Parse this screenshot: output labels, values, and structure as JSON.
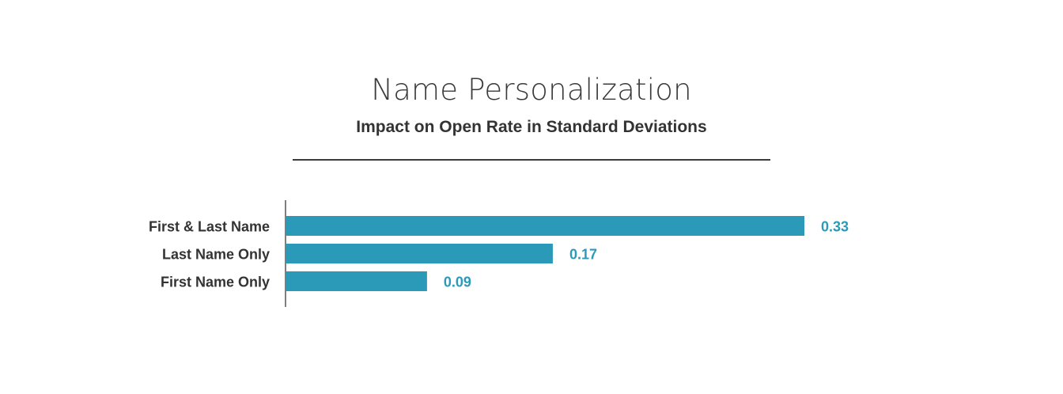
{
  "chart_data": {
    "type": "bar",
    "orientation": "horizontal",
    "title": "Name Personalization",
    "subtitle": "Impact on Open Rate in Standard Deviations",
    "categories": [
      "First & Last Name",
      "Last Name Only",
      "First Name Only"
    ],
    "values": [
      0.33,
      0.17,
      0.09
    ],
    "value_labels": [
      "0.33",
      "0.17",
      "0.09"
    ],
    "xlim": [
      0,
      0.33
    ],
    "grid": false,
    "legend": "none",
    "bar_color": "#2b9ab8",
    "label_color": "#2b9ab8"
  }
}
